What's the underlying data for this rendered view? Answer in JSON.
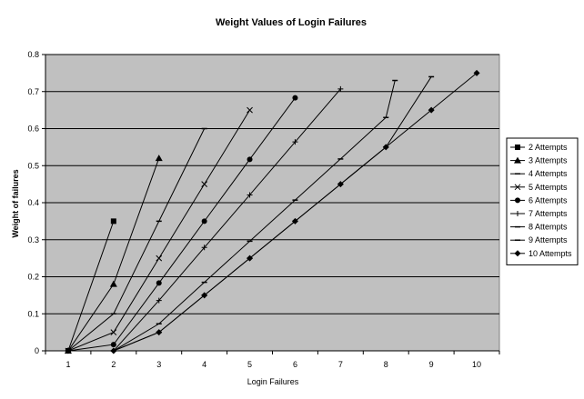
{
  "chart_data": {
    "type": "line",
    "title": "Weight Values of Login Failures",
    "xlabel": "Login Failures",
    "ylabel": "Weight of failures",
    "xlim": [
      0.5,
      10.5
    ],
    "ylim": [
      0,
      0.8
    ],
    "x_ticks": [
      1,
      2,
      3,
      4,
      5,
      6,
      7,
      8,
      9,
      10
    ],
    "y_ticks": [
      0,
      0.1,
      0.2,
      0.3,
      0.4,
      0.5,
      0.6,
      0.7,
      0.8
    ],
    "grid": "horizontal",
    "plot_background": "#c0c0c0",
    "line_color": "#000000",
    "legend_position": "right",
    "series": [
      {
        "name": "2 Attempts",
        "marker": "square",
        "points": [
          [
            1,
            0
          ],
          [
            2,
            0.35
          ]
        ]
      },
      {
        "name": "3 Attempts",
        "marker": "triangle",
        "points": [
          [
            1,
            0
          ],
          [
            2,
            0.18
          ],
          [
            3,
            0.52
          ]
        ]
      },
      {
        "name": "4 Attempts",
        "marker": "dash",
        "points": [
          [
            1,
            0
          ],
          [
            2,
            0.1
          ],
          [
            3,
            0.35
          ],
          [
            4,
            0.6
          ]
        ]
      },
      {
        "name": "5 Attempts",
        "marker": "cross",
        "points": [
          [
            1,
            0
          ],
          [
            2,
            0.05
          ],
          [
            3,
            0.25
          ],
          [
            4,
            0.45
          ],
          [
            5,
            0.65
          ]
        ]
      },
      {
        "name": "6 Attempts",
        "marker": "circle",
        "points": [
          [
            1,
            0
          ],
          [
            2,
            0.017
          ],
          [
            3,
            0.183
          ],
          [
            4,
            0.35
          ],
          [
            5,
            0.517
          ],
          [
            6,
            0.683
          ]
        ]
      },
      {
        "name": "7 Attempts",
        "marker": "plus",
        "points": [
          [
            1,
            0
          ],
          [
            2,
            0
          ],
          [
            3,
            0.136
          ],
          [
            4,
            0.279
          ],
          [
            5,
            0.421
          ],
          [
            6,
            0.564
          ],
          [
            7,
            0.707
          ]
        ]
      },
      {
        "name": "8 Attempts",
        "marker": "dash",
        "points": [
          [
            1,
            0
          ],
          [
            2,
            0
          ],
          [
            3,
            0.073
          ],
          [
            4,
            0.185
          ],
          [
            5,
            0.296
          ],
          [
            6,
            0.407
          ],
          [
            7,
            0.518
          ],
          [
            8,
            0.63
          ],
          [
            8.2,
            0.73
          ]
        ]
      },
      {
        "name": "9 Attempts",
        "marker": "dash",
        "points": [
          [
            1,
            0
          ],
          [
            2,
            0
          ],
          [
            3,
            0.05
          ],
          [
            4,
            0.15
          ],
          [
            5,
            0.25
          ],
          [
            6,
            0.35
          ],
          [
            7,
            0.45
          ],
          [
            8,
            0.55
          ],
          [
            9,
            0.74
          ]
        ]
      },
      {
        "name": "10 Attempts",
        "marker": "diamond",
        "points": [
          [
            1,
            0
          ],
          [
            2,
            0
          ],
          [
            3,
            0.05
          ],
          [
            4,
            0.15
          ],
          [
            5,
            0.25
          ],
          [
            6,
            0.35
          ],
          [
            7,
            0.45
          ],
          [
            8,
            0.55
          ],
          [
            9,
            0.65
          ],
          [
            10,
            0.75
          ]
        ]
      }
    ]
  }
}
